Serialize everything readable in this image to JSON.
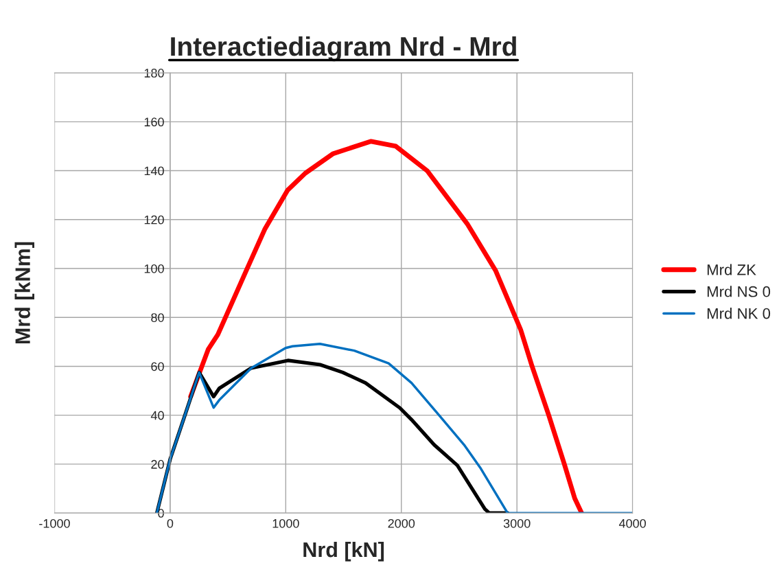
{
  "chart_data": {
    "type": "line",
    "title": "Interactiediagram Nrd - Mrd",
    "xlabel": "Nrd [kN]",
    "ylabel": "Mrd [kNm]",
    "xlim": [
      -1000,
      4000
    ],
    "xticks": [
      -1000,
      0,
      1000,
      2000,
      3000,
      4000
    ],
    "ylim": [
      0,
      180
    ],
    "yticks": [
      0,
      20,
      40,
      60,
      80,
      100,
      120,
      140,
      160,
      180
    ],
    "grid": true,
    "legend": "right",
    "marker": "none",
    "line_style": "solid",
    "series": [
      {
        "name": "Mrd ZK",
        "color": "#ff0000",
        "x": [
          177,
          251,
          330,
          413,
          657,
          818,
          1016,
          1170,
          1411,
          1738,
          1952,
          2223,
          2574,
          2817,
          3032,
          3131,
          3275,
          3410,
          3500,
          3560
        ],
        "values": [
          47.6,
          57,
          67,
          73,
          99,
          116,
          132,
          139,
          147,
          152,
          150,
          140,
          118,
          99,
          75,
          60,
          40,
          20,
          6,
          0
        ]
      },
      {
        "name": "Mrd NS 0",
        "color": "#000000",
        "x": [
          -115,
          0,
          128,
          251,
          376,
          425,
          702,
          1019,
          1296,
          1494,
          1690,
          1987,
          2088,
          2284,
          2484,
          2722,
          2760,
          2920
        ],
        "values": [
          0,
          22,
          40,
          57.5,
          47.6,
          51,
          59.3,
          62.4,
          60.7,
          57.5,
          53.2,
          43,
          38.2,
          27.9,
          19.5,
          1.7,
          0,
          0
        ]
      },
      {
        "name": "Mrd NK 0",
        "color": "#0070c0",
        "x": [
          -115,
          0,
          128,
          251,
          376,
          425,
          702,
          999,
          1059,
          1296,
          1593,
          1890,
          2088,
          2325,
          2543,
          2682,
          2919,
          4000
        ],
        "values": [
          0,
          22,
          40,
          57.5,
          43.1,
          46.2,
          59.3,
          67.5,
          68.2,
          69.2,
          66.4,
          61.2,
          53.2,
          40.1,
          27.9,
          18.6,
          0,
          0
        ]
      }
    ]
  }
}
